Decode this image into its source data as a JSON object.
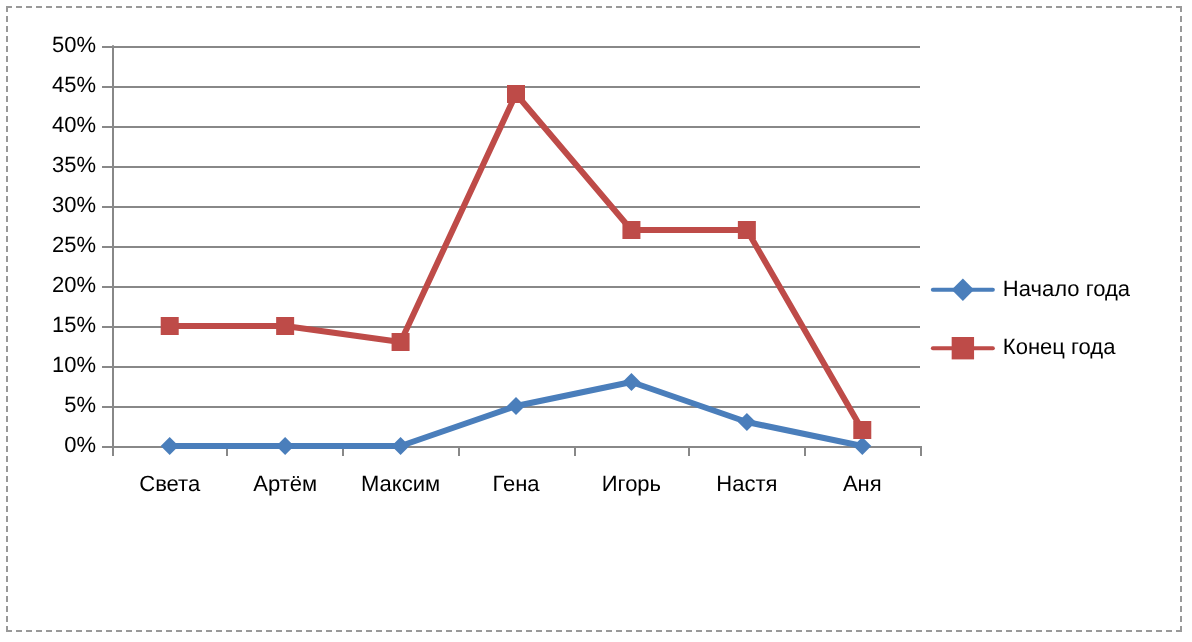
{
  "chart_data": {
    "type": "line",
    "categories": [
      "Света",
      "Артём",
      "Максим",
      "Гена",
      "Игорь",
      "Настя",
      "Аня"
    ],
    "series": [
      {
        "name": "Начало года",
        "color": "#4a7ebb",
        "marker": "diamond",
        "values": [
          0,
          0,
          0,
          5,
          8,
          3,
          0
        ]
      },
      {
        "name": "Конец года",
        "color": "#be4b48",
        "marker": "square",
        "values": [
          15,
          15,
          13,
          44,
          27,
          27,
          2
        ]
      }
    ],
    "ylim": [
      0,
      50
    ],
    "yticks": [
      {
        "value": 0,
        "label": "0%"
      },
      {
        "value": 5,
        "label": "5%"
      },
      {
        "value": 10,
        "label": "10%"
      },
      {
        "value": 15,
        "label": "15%"
      },
      {
        "value": 20,
        "label": "20%"
      },
      {
        "value": 25,
        "label": "25%"
      },
      {
        "value": 30,
        "label": "30%"
      },
      {
        "value": 35,
        "label": "35%"
      },
      {
        "value": 40,
        "label": "40%"
      },
      {
        "value": 45,
        "label": "45%"
      },
      {
        "value": 50,
        "label": "50%"
      }
    ],
    "grid": "y",
    "legend": "right",
    "line_style": "solid"
  }
}
